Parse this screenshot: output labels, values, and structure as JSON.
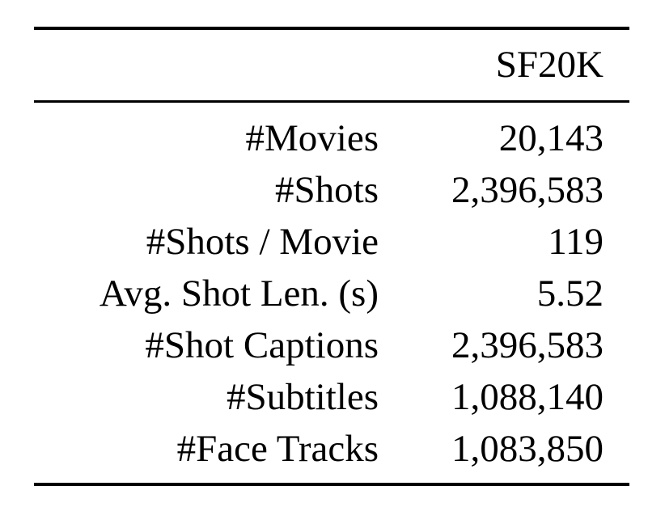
{
  "table": {
    "header": {
      "label_column": "",
      "value_column": "SF20K"
    },
    "rows": [
      {
        "label": "#Movies",
        "value": "20,143"
      },
      {
        "label": "#Shots",
        "value": "2,396,583"
      },
      {
        "label": "#Shots / Movie",
        "value": "119"
      },
      {
        "label": "Avg. Shot Len. (s)",
        "value": "5.52"
      },
      {
        "label": "#Shot Captions",
        "value": "2,396,583"
      },
      {
        "label": "#Subtitles",
        "value": "1,088,140"
      },
      {
        "label": "#Face Tracks",
        "value": "1,083,850"
      }
    ]
  }
}
